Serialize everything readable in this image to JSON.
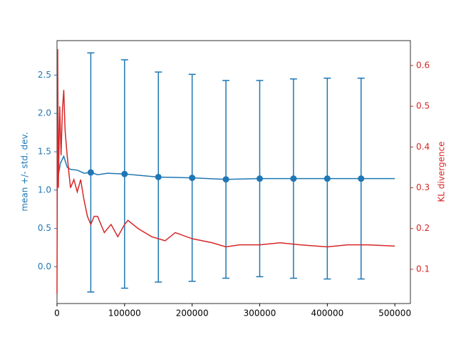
{
  "chart_data": {
    "type": "errorbar-line",
    "xlim": [
      0,
      523000
    ],
    "xticks": [
      0,
      100000,
      200000,
      300000,
      400000,
      500000
    ],
    "ylim": [
      -0.48,
      2.95
    ],
    "yticks": [
      {
        "value": 0,
        "label": "0.0"
      },
      0.5,
      {
        "value": 1,
        "label": "1.0"
      },
      1.5,
      {
        "value": 2,
        "label": "2.0"
      },
      2.5
    ],
    "y2lim": [
      0.016,
      0.661
    ],
    "y2ticks": [
      0.1,
      0.2,
      0.3,
      0.4,
      0.5,
      0.6
    ],
    "ylabel": "mean +/- std. dev.",
    "y2label": "KL divergence",
    "ylabel_color": "#1f77b4",
    "y2label_color": "#d62728",
    "series": [
      {
        "kind": "errorbar",
        "color": "#1f77b4",
        "x": [
          50000,
          100000,
          150000,
          200000,
          250000,
          300000,
          350000,
          400000,
          450000
        ],
        "values": [
          1.23,
          1.21,
          1.17,
          1.16,
          1.14,
          1.15,
          1.15,
          1.15,
          1.15
        ],
        "errors": [
          1.56,
          1.49,
          1.37,
          1.35,
          1.29,
          1.28,
          1.3,
          1.31,
          1.31
        ]
      },
      {
        "kind": "line",
        "color": "#1f77b4",
        "x": [
          2000,
          5000,
          10000,
          15000,
          20000,
          30000,
          40000,
          50000,
          60000,
          75000,
          100000,
          125000,
          150000,
          200000,
          250000,
          300000,
          350000,
          400000,
          450000,
          500000
        ],
        "values": [
          1.2,
          1.35,
          1.44,
          1.3,
          1.27,
          1.26,
          1.22,
          1.23,
          1.2,
          1.22,
          1.21,
          1.19,
          1.17,
          1.16,
          1.14,
          1.15,
          1.15,
          1.15,
          1.15,
          1.15
        ]
      },
      {
        "kind": "line",
        "color": "#d62728",
        "axis": "y2",
        "x": [
          0,
          1000,
          2000,
          4000,
          6000,
          8000,
          10000,
          12000,
          15000,
          18000,
          20000,
          25000,
          30000,
          35000,
          40000,
          45000,
          50000,
          55000,
          60000,
          70000,
          80000,
          90000,
          100000,
          105000,
          120000,
          140000,
          160000,
          175000,
          200000,
          230000,
          250000,
          270000,
          300000,
          330000,
          360000,
          400000,
          430000,
          460000,
          500000
        ],
        "values": [
          0.04,
          0.64,
          0.3,
          0.5,
          0.38,
          0.49,
          0.54,
          0.44,
          0.38,
          0.33,
          0.3,
          0.32,
          0.29,
          0.32,
          0.27,
          0.23,
          0.21,
          0.23,
          0.23,
          0.19,
          0.21,
          0.18,
          0.21,
          0.22,
          0.2,
          0.18,
          0.17,
          0.19,
          0.175,
          0.165,
          0.155,
          0.16,
          0.16,
          0.165,
          0.16,
          0.155,
          0.16,
          0.16,
          0.157
        ]
      }
    ]
  }
}
